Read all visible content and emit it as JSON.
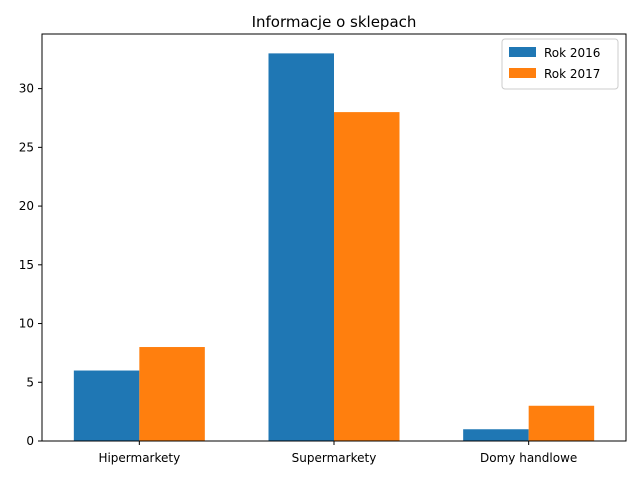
{
  "chart_data": {
    "type": "bar",
    "title": "Informacje o sklepach",
    "xlabel": "",
    "ylabel": "",
    "categories": [
      "Hipermarkety",
      "Supermarkety",
      "Domy handlowe"
    ],
    "series": [
      {
        "name": "Rok 2016",
        "values": [
          6,
          33,
          1
        ],
        "color": "#1f77b4"
      },
      {
        "name": "Rok 2017",
        "values": [
          8,
          28,
          3
        ],
        "color": "#ff7f0e"
      }
    ],
    "ylim": [
      0,
      34.65
    ],
    "yticks": [
      0,
      5,
      10,
      15,
      20,
      25,
      30
    ],
    "grid": false,
    "legend_position": "top-right"
  }
}
